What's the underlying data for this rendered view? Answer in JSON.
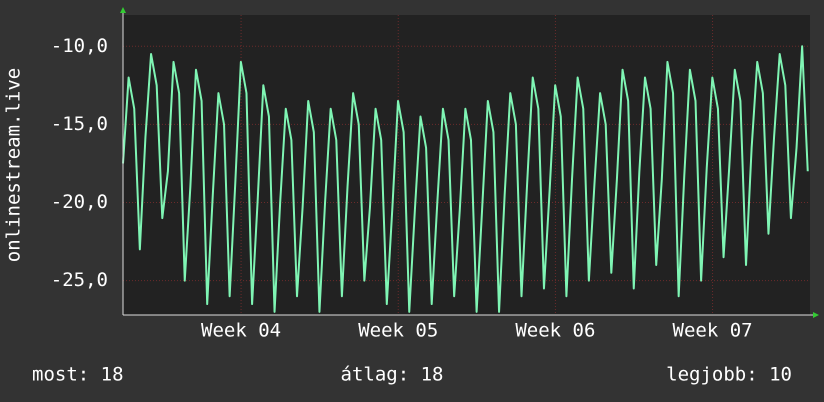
{
  "chart_data": {
    "type": "line",
    "ylabel": "onlinestream.live",
    "x": [
      0,
      0.25,
      0.5,
      0.75,
      1,
      1.25,
      1.5,
      1.75,
      2,
      2.25,
      2.5,
      2.75,
      3,
      3.25,
      3.5,
      3.75,
      4,
      4.25,
      4.5,
      4.75,
      5,
      5.25,
      5.5,
      5.75,
      6,
      6.25,
      6.5,
      6.75,
      7,
      7.25,
      7.5,
      7.75,
      8,
      8.25,
      8.5,
      8.75,
      9,
      9.25,
      9.5,
      9.75,
      10,
      10.25,
      10.5,
      10.75,
      11,
      11.25,
      11.5,
      11.75,
      12,
      12.25,
      12.5,
      12.75,
      13,
      13.25,
      13.5,
      13.75,
      14,
      14.25,
      14.5,
      14.75,
      15,
      15.25,
      15.5,
      15.75,
      16,
      16.25,
      16.5,
      16.75,
      17,
      17.25,
      17.5,
      17.75,
      18,
      18.25,
      18.5,
      18.75,
      19,
      19.25,
      19.5,
      19.75,
      20,
      20.25,
      20.5,
      20.75,
      21,
      21.25,
      21.5,
      21.75,
      22,
      22.25,
      22.5,
      22.75,
      23,
      23.25,
      23.5,
      23.75,
      24,
      24.25,
      24.5,
      24.75,
      25,
      25.25,
      25.5,
      25.75,
      26,
      26.25,
      26.5,
      26.75,
      27,
      27.25,
      27.5,
      27.75,
      28,
      28.25,
      28.5,
      28.75,
      29,
      29.25,
      29.5,
      29.75,
      30,
      30.25,
      30.5
    ],
    "series": [
      {
        "color": "#7ff5b4",
        "values": [
          -17.5,
          -12,
          -14,
          -23,
          -15.8,
          -10.5,
          -12.5,
          -21,
          -18,
          -11,
          -13,
          -25,
          -19,
          -11.5,
          -13.5,
          -26.5,
          -19.5,
          -13,
          -15,
          -26,
          -18.8,
          -11,
          -13,
          -26.5,
          -19.8,
          -12.5,
          -14.5,
          -27,
          -20,
          -14,
          -16,
          -26,
          -20.3,
          -13.5,
          -15.5,
          -27,
          -20,
          -14,
          -16,
          -26,
          -19,
          -13,
          -15,
          -25,
          -20.3,
          -14,
          -16,
          -26.5,
          -20.3,
          -13.5,
          -15.5,
          -27,
          -20.5,
          -14.5,
          -16.5,
          -26.5,
          -20,
          -14,
          -16,
          -26,
          -20.5,
          -14,
          -16,
          -27,
          -20.3,
          -13.5,
          -15.5,
          -27,
          -19.5,
          -13,
          -15,
          -26,
          -18.8,
          -12,
          -14,
          -25.5,
          -19.3,
          -12.5,
          -14.5,
          -26,
          -18.5,
          -12,
          -14,
          -25,
          -18.8,
          -13,
          -15,
          -24.5,
          -18.5,
          -11.5,
          -13.5,
          -25.5,
          -18,
          -12,
          -14,
          -24,
          -18.5,
          -11,
          -13,
          -26,
          -18.3,
          -11.5,
          -13.5,
          -25,
          -17.8,
          -12,
          -14,
          -23.5,
          -17.8,
          -11.5,
          -13.5,
          -24,
          -16.5,
          -11,
          -13,
          -22,
          -15.8,
          -10.5,
          -12.5,
          -21,
          -16.5,
          -10,
          -18
        ]
      }
    ],
    "xlim": [
      0,
      30.6
    ],
    "xticks": [
      {
        "value": 5.26,
        "label": "Week 04"
      },
      {
        "value": 12.26,
        "label": "Week 05"
      },
      {
        "value": 19.26,
        "label": "Week 06"
      },
      {
        "value": 26.26,
        "label": "Week 07"
      }
    ],
    "ylim": [
      -27.2,
      -8.0
    ],
    "yticks": [
      {
        "value": -25,
        "label": "-25,0"
      },
      {
        "value": -20,
        "label": "-20,0"
      },
      {
        "value": -15,
        "label": "-15,0"
      },
      {
        "value": -10,
        "label": "-10,0"
      }
    ],
    "grid": true,
    "footer": [
      "most: 18",
      "átlag: 18",
      "legjobb: 10"
    ]
  }
}
